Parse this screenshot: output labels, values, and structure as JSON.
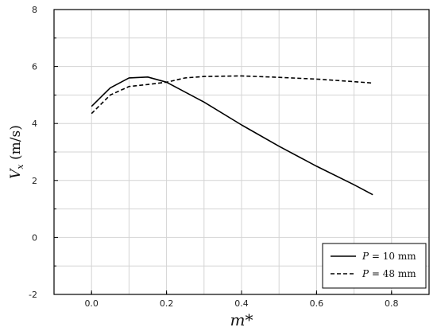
{
  "chart_data": {
    "type": "line",
    "xlabel": "m*",
    "ylabel": "V_x (m/s)",
    "xlim": [
      -0.1,
      0.9
    ],
    "ylim": [
      -2,
      8
    ],
    "xticks": [
      "0.0",
      "0.2",
      "0.4",
      "0.6",
      "0.8"
    ],
    "xtick_values": [
      0.0,
      0.2,
      0.4,
      0.6,
      0.8
    ],
    "yticks": [
      "-2",
      "0",
      "2",
      "4",
      "6",
      "8"
    ],
    "ytick_values": [
      -2,
      0,
      2,
      4,
      6,
      8
    ],
    "grid": true,
    "legend_position": "bottom-right",
    "series": [
      {
        "name": "P = 10 mm",
        "name_italic": "P",
        "name_rest": " = 10 mm",
        "style": "solid",
        "x": [
          0.0,
          0.05,
          0.1,
          0.15,
          0.2,
          0.3,
          0.4,
          0.5,
          0.6,
          0.7,
          0.75
        ],
        "y": [
          4.6,
          5.25,
          5.6,
          5.63,
          5.45,
          4.75,
          3.95,
          3.2,
          2.5,
          1.85,
          1.5
        ]
      },
      {
        "name": "P = 48 mm",
        "name_italic": "P",
        "name_rest": " = 48 mm",
        "style": "dashed",
        "x": [
          0.0,
          0.05,
          0.1,
          0.15,
          0.2,
          0.25,
          0.3,
          0.4,
          0.5,
          0.6,
          0.7,
          0.75
        ],
        "y": [
          4.35,
          5.0,
          5.3,
          5.37,
          5.45,
          5.6,
          5.65,
          5.67,
          5.62,
          5.56,
          5.47,
          5.42
        ]
      }
    ]
  }
}
